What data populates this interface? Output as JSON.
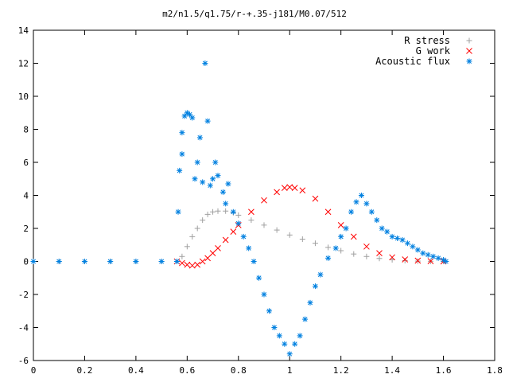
{
  "chart_data": {
    "type": "scatter",
    "title": "m2/n1.5/q1.75/r-+.35-j181/M0.07/512",
    "xlabel": "",
    "ylabel": "",
    "xlim": [
      0,
      1.8
    ],
    "ylim": [
      -6,
      14
    ],
    "xticks": [
      "0",
      "0.2",
      "0.4",
      "0.6",
      "0.8",
      "1",
      "1.2",
      "1.4",
      "1.6",
      "1.8"
    ],
    "yticks": [
      "-6",
      "-4",
      "-2",
      "0",
      "2",
      "4",
      "6",
      "8",
      "10",
      "12",
      "14"
    ],
    "grid": false,
    "legend_position": "top-right",
    "series": [
      {
        "name": "R stress",
        "marker": "+",
        "color": "#a0a0a0",
        "points": [
          [
            0.0,
            0.0
          ],
          [
            0.1,
            0.0
          ],
          [
            0.2,
            0.0
          ],
          [
            0.3,
            0.0
          ],
          [
            0.4,
            0.0
          ],
          [
            0.5,
            0.0
          ],
          [
            0.56,
            0.0
          ],
          [
            0.58,
            0.3
          ],
          [
            0.6,
            0.9
          ],
          [
            0.62,
            1.5
          ],
          [
            0.64,
            2.0
          ],
          [
            0.66,
            2.5
          ],
          [
            0.68,
            2.85
          ],
          [
            0.7,
            3.0
          ],
          [
            0.72,
            3.05
          ],
          [
            0.75,
            3.05
          ],
          [
            0.78,
            2.95
          ],
          [
            0.8,
            2.8
          ],
          [
            0.85,
            2.5
          ],
          [
            0.9,
            2.2
          ],
          [
            0.95,
            1.9
          ],
          [
            1.0,
            1.6
          ],
          [
            1.05,
            1.35
          ],
          [
            1.1,
            1.1
          ],
          [
            1.15,
            0.85
          ],
          [
            1.2,
            0.65
          ],
          [
            1.25,
            0.45
          ],
          [
            1.3,
            0.3
          ],
          [
            1.35,
            0.18
          ],
          [
            1.4,
            0.1
          ],
          [
            1.45,
            0.05
          ],
          [
            1.5,
            0.02
          ],
          [
            1.55,
            0.01
          ],
          [
            1.6,
            0.0
          ]
        ]
      },
      {
        "name": "G work",
        "marker": "x",
        "color": "#ff0000",
        "points": [
          [
            0.56,
            0.0
          ],
          [
            0.58,
            -0.1
          ],
          [
            0.6,
            -0.2
          ],
          [
            0.62,
            -0.25
          ],
          [
            0.64,
            -0.2
          ],
          [
            0.66,
            0.0
          ],
          [
            0.68,
            0.2
          ],
          [
            0.7,
            0.5
          ],
          [
            0.72,
            0.8
          ],
          [
            0.75,
            1.3
          ],
          [
            0.78,
            1.8
          ],
          [
            0.8,
            2.2
          ],
          [
            0.85,
            3.0
          ],
          [
            0.9,
            3.7
          ],
          [
            0.95,
            4.2
          ],
          [
            0.98,
            4.45
          ],
          [
            1.0,
            4.5
          ],
          [
            1.02,
            4.45
          ],
          [
            1.05,
            4.3
          ],
          [
            1.1,
            3.8
          ],
          [
            1.15,
            3.0
          ],
          [
            1.2,
            2.2
          ],
          [
            1.25,
            1.5
          ],
          [
            1.3,
            0.9
          ],
          [
            1.35,
            0.5
          ],
          [
            1.4,
            0.25
          ],
          [
            1.45,
            0.12
          ],
          [
            1.5,
            0.05
          ],
          [
            1.55,
            0.02
          ],
          [
            1.6,
            0.0
          ]
        ]
      },
      {
        "name": "Acoustic flux",
        "marker": "*",
        "color": "#0080e0",
        "points": [
          [
            0.0,
            0.0
          ],
          [
            0.1,
            0.0
          ],
          [
            0.2,
            0.0
          ],
          [
            0.3,
            0.0
          ],
          [
            0.4,
            0.0
          ],
          [
            0.5,
            0.0
          ],
          [
            0.56,
            0.0
          ],
          [
            0.565,
            3.0
          ],
          [
            0.57,
            5.5
          ],
          [
            0.58,
            7.8
          ],
          [
            0.59,
            8.8
          ],
          [
            0.6,
            9.0
          ],
          [
            0.61,
            8.9
          ],
          [
            0.62,
            8.7
          ],
          [
            0.58,
            6.5
          ],
          [
            0.63,
            5.0
          ],
          [
            0.64,
            6.0
          ],
          [
            0.65,
            7.5
          ],
          [
            0.66,
            4.8
          ],
          [
            0.67,
            12.0
          ],
          [
            0.68,
            8.5
          ],
          [
            0.69,
            4.6
          ],
          [
            0.7,
            5.0
          ],
          [
            0.71,
            6.0
          ],
          [
            0.72,
            5.2
          ],
          [
            0.74,
            4.2
          ],
          [
            0.75,
            3.5
          ],
          [
            0.76,
            4.7
          ],
          [
            0.78,
            3.0
          ],
          [
            0.8,
            2.3
          ],
          [
            0.82,
            1.5
          ],
          [
            0.84,
            0.8
          ],
          [
            0.86,
            0.0
          ],
          [
            0.88,
            -1.0
          ],
          [
            0.9,
            -2.0
          ],
          [
            0.92,
            -3.0
          ],
          [
            0.94,
            -4.0
          ],
          [
            0.96,
            -4.5
          ],
          [
            0.98,
            -5.0
          ],
          [
            1.0,
            -5.6
          ],
          [
            1.02,
            -5.0
          ],
          [
            1.04,
            -4.5
          ],
          [
            1.06,
            -3.5
          ],
          [
            1.08,
            -2.5
          ],
          [
            1.1,
            -1.5
          ],
          [
            1.12,
            -0.8
          ],
          [
            1.15,
            0.2
          ],
          [
            1.18,
            0.8
          ],
          [
            1.2,
            1.5
          ],
          [
            1.22,
            2.0
          ],
          [
            1.24,
            3.0
          ],
          [
            1.26,
            3.6
          ],
          [
            1.28,
            4.0
          ],
          [
            1.3,
            3.5
          ],
          [
            1.32,
            3.0
          ],
          [
            1.34,
            2.5
          ],
          [
            1.36,
            2.0
          ],
          [
            1.38,
            1.8
          ],
          [
            1.4,
            1.5
          ],
          [
            1.42,
            1.4
          ],
          [
            1.44,
            1.3
          ],
          [
            1.46,
            1.1
          ],
          [
            1.48,
            0.9
          ],
          [
            1.5,
            0.7
          ],
          [
            1.52,
            0.5
          ],
          [
            1.54,
            0.4
          ],
          [
            1.56,
            0.3
          ],
          [
            1.58,
            0.2
          ],
          [
            1.6,
            0.1
          ],
          [
            1.61,
            0.0
          ]
        ]
      }
    ]
  }
}
